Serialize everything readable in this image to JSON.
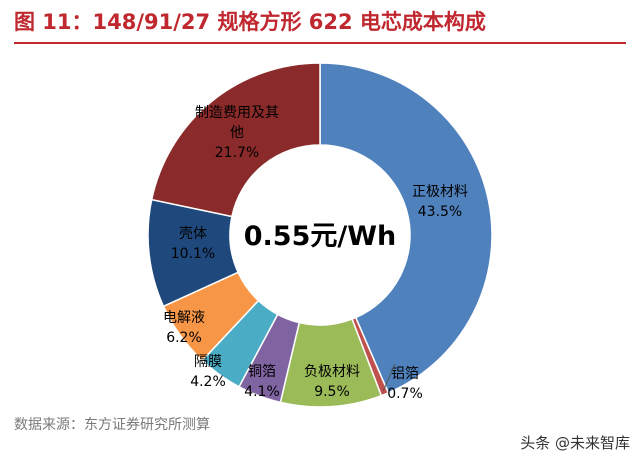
{
  "figure": {
    "title": "图 11：148/91/27 规格方形 622 电芯成本构成",
    "source": "数据来源：东方证券研究所测算",
    "watermark": "头条 @未来智库"
  },
  "chart_data": {
    "type": "pie",
    "donut": true,
    "center_label": "0.55元/Wh",
    "slices": [
      {
        "name": "正极材料",
        "value": 43.5,
        "label": "43.5%",
        "color": "#4f81bd"
      },
      {
        "name": "铝箔",
        "value": 0.7,
        "label": "0.7%",
        "color": "#c0504d"
      },
      {
        "name": "负极材料",
        "value": 9.5,
        "label": "9.5%",
        "color": "#9bbb59"
      },
      {
        "name": "铜箔",
        "value": 4.1,
        "label": "4.1%",
        "color": "#8064a2"
      },
      {
        "name": "隔膜",
        "value": 4.2,
        "label": "4.2%",
        "color": "#4bacc6"
      },
      {
        "name": "电解液",
        "value": 6.2,
        "label": "6.2%",
        "color": "#f79646"
      },
      {
        "name": "壳体",
        "value": 10.1,
        "label": "10.1%",
        "color": "#1f497d"
      },
      {
        "name": "制造费用及其他",
        "value": 21.7,
        "label": "21.7%",
        "color": "#8b2a2a"
      }
    ]
  }
}
